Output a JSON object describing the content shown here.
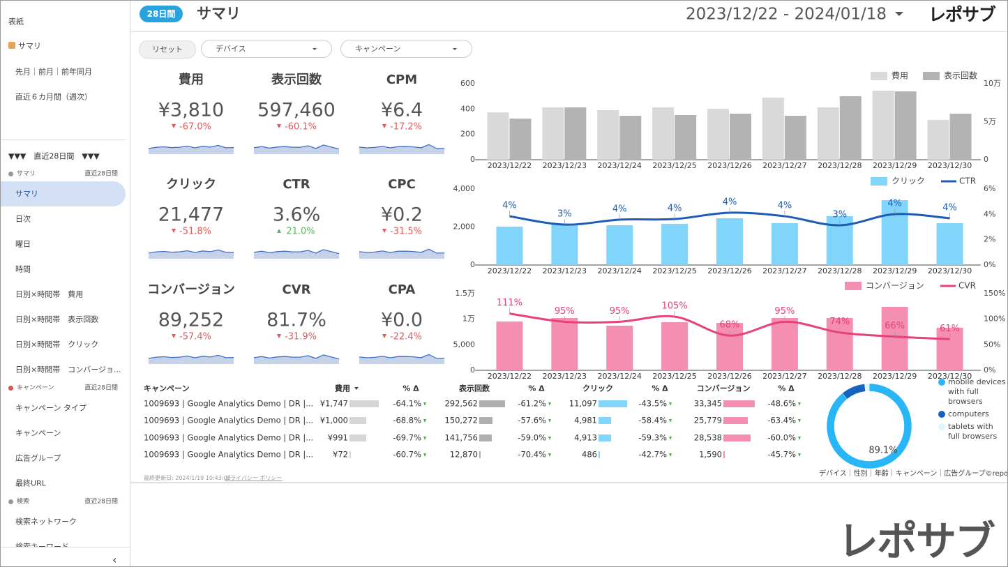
{
  "sidebar": {
    "cover": "表紙",
    "summary_link": "サマリ",
    "links": [
      "先月｜前月｜前年同月",
      "直近６カ月間（週次）"
    ],
    "period_header": "▼▼▼　直近28日間　▼▼▼",
    "sections": [
      {
        "label": "サマリ",
        "period": "直近28日間",
        "items": [
          "サマリ",
          "日次",
          "曜日",
          "時間",
          "日別×時間帯　費用",
          "日別×時間帯　表示回数",
          "日別×時間帯　クリック",
          "日別×時間帯　コンバージョ..."
        ]
      },
      {
        "label": "キャンペーン",
        "period": "直近28日間",
        "items": [
          "キャンペーン タイプ",
          "キャンペーン",
          "広告グループ",
          "最終URL"
        ]
      },
      {
        "label": "検索",
        "period": "直近28日間",
        "items": [
          "検索ネットワーク",
          "検索キーワード"
        ]
      }
    ],
    "collapse": "‹"
  },
  "header": {
    "badge": "28日間",
    "title": "サマリ",
    "date_range": "2023/12/22 - 2024/01/18",
    "logo": "レポサブ"
  },
  "filters": {
    "reset": "リセット",
    "dropdowns": [
      "デバイス",
      "キャンペーン"
    ]
  },
  "kpis": [
    {
      "label": "費用",
      "value": "¥3,810",
      "delta": "-67.0%",
      "trend": "down"
    },
    {
      "label": "表示回数",
      "value": "597,460",
      "delta": "-60.1%",
      "trend": "down"
    },
    {
      "label": "CPM",
      "value": "¥6.4",
      "delta": "-17.2%",
      "trend": "down"
    },
    {
      "label": "クリック",
      "value": "21,477",
      "delta": "-51.8%",
      "trend": "down"
    },
    {
      "label": "CTR",
      "value": "3.6%",
      "delta": "21.0%",
      "trend": "up"
    },
    {
      "label": "CPC",
      "value": "¥0.2",
      "delta": "-31.5%",
      "trend": "down"
    },
    {
      "label": "コンバージョン",
      "value": "89,252",
      "delta": "-57.4%",
      "trend": "down"
    },
    {
      "label": "CVR",
      "value": "81.7%",
      "delta": "-31.9%",
      "trend": "down"
    },
    {
      "label": "CPA",
      "value": "¥0.0",
      "delta": "-22.4%",
      "trend": "down"
    }
  ],
  "chart_data": [
    {
      "type": "bar",
      "categories": [
        "2023/12/22",
        "2023/12/23",
        "2023/12/24",
        "2023/12/25",
        "2023/12/26",
        "2023/12/27",
        "2023/12/28",
        "2023/12/29",
        "2023/12/30"
      ],
      "series": [
        {
          "name": "費用",
          "color": "#d9d9d9",
          "values": [
            374,
            413,
            391,
            413,
            402,
            490,
            413,
            545,
            314
          ]
        },
        {
          "name": "表示回数",
          "color": "#b3b3b3",
          "axis": "y2",
          "values": [
            54100,
            68800,
            57800,
            58700,
            60600,
            57800,
            83500,
            89900,
            60600
          ]
        }
      ],
      "ylim": [
        0,
        600
      ],
      "yticks": [
        0,
        200,
        400,
        600
      ],
      "y2lim": [
        0,
        100000
      ],
      "y2ticks": [
        0,
        {
          "value": 50000,
          "label": "5万"
        },
        {
          "value": 100000,
          "label": "10万"
        }
      ],
      "legend": "top-right"
    },
    {
      "type": "bar-line",
      "categories": [
        "2023/12/22",
        "2023/12/23",
        "2023/12/24",
        "2023/12/25",
        "2023/12/26",
        "2023/12/27",
        "2023/12/28",
        "2023/12/29",
        "2023/12/30"
      ],
      "series": [
        {
          "name": "クリック",
          "color": "#81d4fa",
          "values": [
            2020,
            2170,
            2090,
            2170,
            2460,
            2200,
            2570,
            3410,
            2200
          ]
        },
        {
          "name": "CTR",
          "color": "#1e5bb8",
          "axis": "y2",
          "values": [
            3.85,
            3.19,
            3.58,
            3.63,
            4.13,
            3.85,
            3.14,
            4.02,
            3.69
          ],
          "value_labels": [
            "4%",
            "3%",
            "4%",
            "4%",
            "4%",
            "4%",
            "3%",
            "4%",
            "4%"
          ]
        }
      ],
      "ylim": [
        0,
        4000
      ],
      "yticks": [
        0,
        {
          "value": 2000,
          "label": "2,000"
        },
        {
          "value": 4000,
          "label": "4,000"
        }
      ],
      "y2lim": [
        0,
        6
      ],
      "y2ticks": [
        {
          "value": 0,
          "label": "0%"
        },
        {
          "value": 2,
          "label": "2%"
        },
        {
          "value": 4,
          "label": "4%"
        },
        {
          "value": 6,
          "label": "6%"
        }
      ],
      "legend": "top-right"
    },
    {
      "type": "bar-line",
      "categories": [
        "2023/12/22",
        "2023/12/23",
        "2023/12/24",
        "2023/12/25",
        "2023/12/26",
        "2023/12/27",
        "2023/12/28",
        "2023/12/29",
        "2023/12/30"
      ],
      "series": [
        {
          "name": "コンバージョン",
          "color": "#f48fb1",
          "values": [
            9545,
            10230,
            8730,
            9410,
            9270,
            10230,
            10230,
            12410,
            8320
          ]
        },
        {
          "name": "CVR",
          "color": "#e8407a",
          "axis": "y2",
          "values": [
            111,
            95,
            95,
            105,
            68,
            95,
            74,
            66,
            61
          ],
          "value_labels": [
            "111%",
            "95%",
            "95%",
            "105%",
            "68%",
            "95%",
            "74%",
            "66%",
            "61%"
          ]
        }
      ],
      "ylim": [
        0,
        15000
      ],
      "yticks": [
        0,
        {
          "value": 5000,
          "label": "5,000"
        },
        {
          "value": 10000,
          "label": "1万"
        },
        {
          "value": 15000,
          "label": "1.5万"
        }
      ],
      "y2lim": [
        0,
        150
      ],
      "y2ticks": [
        {
          "value": 0,
          "label": "0%"
        },
        {
          "value": 50,
          "label": "50%"
        },
        {
          "value": 100,
          "label": "100%"
        },
        {
          "value": 150,
          "label": "150%"
        }
      ],
      "legend": "top-right"
    },
    {
      "type": "donut",
      "categories": [
        "mobile devices with full browsers",
        "computers",
        "tablets with full browsers"
      ],
      "values": [
        89.1,
        9.2,
        1.7
      ],
      "value_labels": [
        "89.1%",
        null,
        null
      ],
      "colors": [
        "#29b6f6",
        "#1565c0",
        "#e1f5fe"
      ],
      "legend": "right"
    }
  ],
  "table": {
    "columns": [
      {
        "label": "キャンペーン"
      },
      {
        "label": "費用",
        "bar_color": "#d6d6d6"
      },
      {
        "label": "% Δ"
      },
      {
        "label": "表示回数",
        "bar_color": "#b0b0b0"
      },
      {
        "label": "% Δ"
      },
      {
        "label": "クリック",
        "bar_color": "#81d4fa"
      },
      {
        "label": "% Δ"
      },
      {
        "label": "コンバージョン",
        "bar_color": "#f48fb1"
      },
      {
        "label": "% Δ"
      }
    ],
    "rows": [
      [
        "1009693 | Google Analytics Demo | DR |...",
        {
          "value": 1747,
          "label": "¥1,747"
        },
        "-64.1%",
        {
          "value": 292562,
          "label": "292,562"
        },
        "-61.2%",
        {
          "value": 11097,
          "label": "11,097"
        },
        "-43.5%",
        {
          "value": 33345,
          "label": "33,345"
        },
        "-48.6%"
      ],
      [
        "1009693 | Google Analytics Demo | DR |...",
        {
          "value": 1000,
          "label": "¥1,000"
        },
        "-68.8%",
        {
          "value": 150272,
          "label": "150,272"
        },
        "-57.6%",
        {
          "value": 4981,
          "label": "4,981"
        },
        "-58.4%",
        {
          "value": 25779,
          "label": "25,779"
        },
        "-63.4%"
      ],
      [
        "1009693 | Google Analytics Demo | DR |...",
        {
          "value": 991,
          "label": "¥991"
        },
        "-69.7%",
        {
          "value": 141756,
          "label": "141,756"
        },
        "-59.0%",
        {
          "value": 4913,
          "label": "4,913"
        },
        "-59.3%",
        {
          "value": 28538,
          "label": "28,538"
        },
        "-60.0%"
      ],
      [
        "1009693 | Google Analytics Demo | DR |...",
        {
          "value": 72,
          "label": "¥72"
        },
        "-60.7%",
        {
          "value": 12870,
          "label": "12,870"
        },
        "-70.4%",
        {
          "value": 486,
          "label": "486"
        },
        "-42.7%",
        {
          "value": 1590,
          "label": "1,590"
        },
        "-45.7%"
      ]
    ]
  },
  "footer": {
    "updated": "最終更新日: 2024/1/19 10:43:06",
    "privacy": "プライバシー ポリシー",
    "nav": "デバイス｜性別｜年齢｜キャンペーン｜広告グループ©reposub.",
    "watermark": "レポサブ"
  }
}
